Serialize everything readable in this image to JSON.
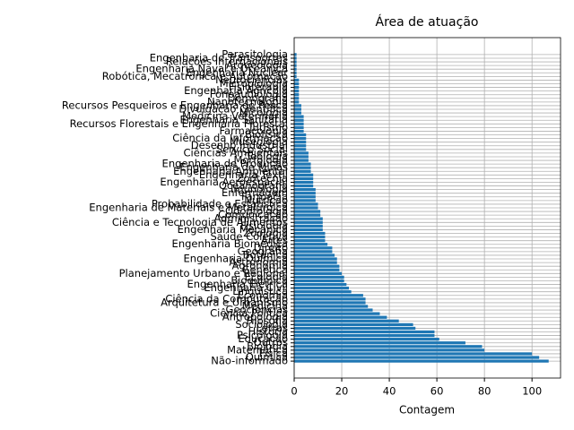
{
  "chart_data": {
    "type": "barh",
    "title": "Área de atuação",
    "xlabel": "Contagem",
    "categories": [
      "Não-informado",
      "Química",
      "Física",
      "Matemática",
      "Biologia",
      "Outros",
      "Educação",
      "Psicologia",
      "História",
      "Letras",
      "Sociologia",
      "Filosofia",
      "Antropologia",
      "Ciência Política",
      "Geociências",
      "Medicina",
      "Arquitetura e Urbanismo",
      "Ciência da Computação",
      "Economia",
      "Linguística",
      "Engenharia Civil",
      "Engenharia Elétrica",
      "Bioquímica",
      "Ecologia",
      "Planejamento Urbano e Regional",
      "Genética",
      "Agronomia",
      "Astronomia",
      "Engenharia Química",
      "Botânica",
      "Geografia",
      "Direito",
      "Engenharia Biomédica",
      "Artes",
      "Saúde Coletiva",
      "Zoologia",
      "Engenharia Mecânica",
      "Fisiologia",
      "Ciência e Tecnologia de Alimentos",
      "Administração",
      "Comunicação",
      "Odontologia",
      "Engenharia de Materiais e Metalúrgica",
      "Probabilidade e Estatística",
      "Nutrição",
      "Farmácia",
      "Enfermagem",
      "Imunologia",
      "Oceanografia",
      "Engenharia Aeroespacial",
      "Zootecnia",
      "Engenharia Têxtil",
      "Engenharia Ambiental",
      "Engenharia de Minas",
      "Engenharia de Produção",
      "Morfologia",
      "Teologia",
      "Ciências Ambientais",
      "Serviço Social",
      "Desenho Industrial",
      "Museologia",
      "Ciência da Informação",
      "Biofísica",
      "Farmacologia",
      "Turismo",
      "Recursos Florestais e Engenharia Florestal",
      "Engenharia Sanitária",
      "Medicina Veterinária",
      "Micologia",
      "Divulgação Científica",
      "Recursos Pesqueiros e Engenharia de Pesca",
      "Nanotecnologia",
      "Demografia",
      "Fonoaudiologia",
      "Engenharia Agrícola",
      "Fisioterapia",
      "Microbiologia",
      "Neurociências",
      "Robótica, Mecatrônica e Automação",
      "Engenharia Nuclear",
      "Engenharia Naval e Oceânica",
      "Arqueologia",
      "Relações Internacionais",
      "Engenharia de Transportes",
      "Parasitologia"
    ],
    "values": [
      107,
      103,
      100,
      80,
      79,
      72,
      61,
      59,
      59,
      51,
      50,
      44,
      39,
      36,
      33,
      31,
      30,
      30,
      29,
      24,
      23,
      22,
      21,
      21,
      20,
      19,
      19,
      18,
      18,
      17,
      16,
      16,
      14,
      13,
      13,
      13,
      12,
      12,
      12,
      12,
      11,
      11,
      10,
      10,
      9,
      9,
      9,
      9,
      8,
      8,
      8,
      8,
      7,
      7,
      7,
      6,
      6,
      6,
      5,
      5,
      5,
      5,
      5,
      4,
      4,
      4,
      4,
      4,
      3,
      3,
      3,
      2,
      2,
      2,
      2,
      2,
      2,
      2,
      1,
      1,
      1,
      1,
      1,
      1,
      1
    ],
    "color": "#1f77b4",
    "xlim": [
      0,
      112
    ],
    "xticks": [
      0,
      20,
      40,
      60,
      80,
      100
    ],
    "grid": true
  }
}
